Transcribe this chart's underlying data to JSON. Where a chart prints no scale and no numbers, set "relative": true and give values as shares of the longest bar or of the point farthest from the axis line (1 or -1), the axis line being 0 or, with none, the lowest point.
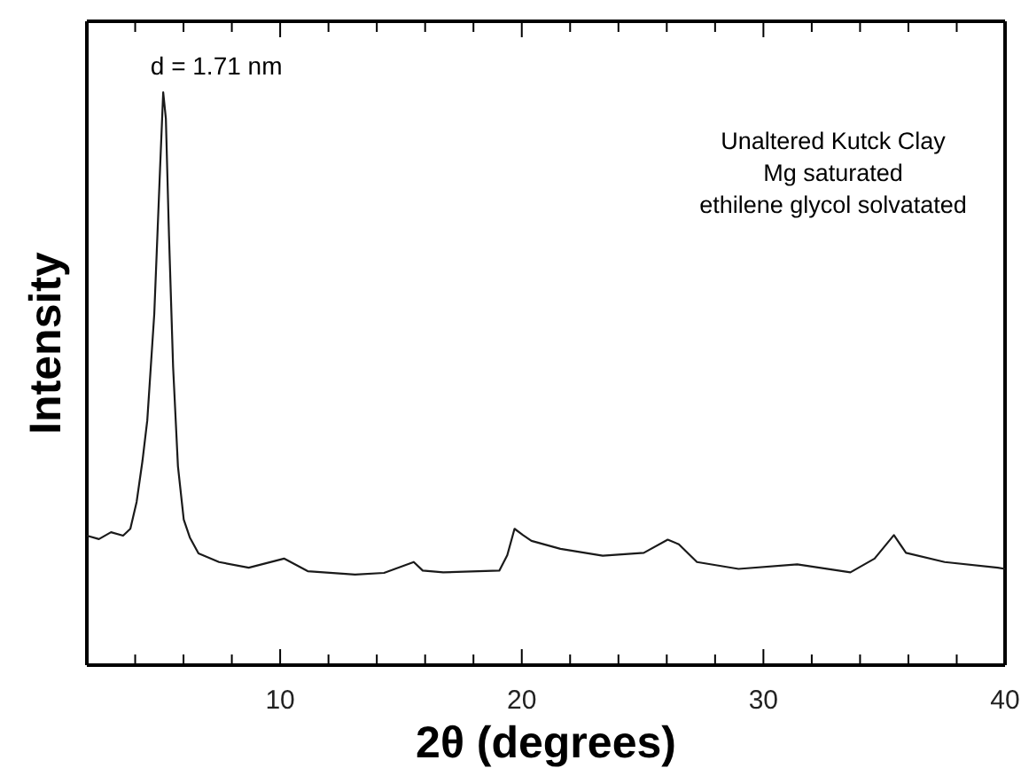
{
  "chart_data": {
    "type": "line",
    "relative": true,
    "xlabel": "2θ (degrees)",
    "ylabel": "Intensity",
    "annotations": [
      {
        "text": "d = 1.71 nm",
        "x": 5.16,
        "y": 1
      },
      "Unaltered Kutck Clay",
      "Mg saturated",
      "ethilene glycol solvatated"
    ],
    "xlim": [
      2,
      40
    ],
    "xticks": [
      {
        "value": 4,
        "label": null
      },
      {
        "value": 6,
        "label": null
      },
      {
        "value": 8,
        "label": null
      },
      10,
      {
        "value": 12,
        "label": null
      },
      {
        "value": 14,
        "label": null
      },
      {
        "value": 16,
        "label": null
      },
      {
        "value": 18,
        "label": null
      },
      20,
      {
        "value": 22,
        "label": null
      },
      {
        "value": 24,
        "label": null
      },
      {
        "value": 26,
        "label": null
      },
      {
        "value": 28,
        "label": null
      },
      30,
      {
        "value": 32,
        "label": null
      },
      {
        "value": 34,
        "label": null
      },
      {
        "value": 36,
        "label": null
      },
      {
        "value": 38,
        "label": null
      },
      40
    ],
    "grid": false,
    "marker": "none",
    "line_style": "solid",
    "series": [
      {
        "color": "#1a1a1a",
        "x": [
          2.0,
          2.5,
          3.0,
          3.5,
          3.8,
          4.06,
          4.3,
          4.5,
          4.79,
          5.03,
          5.16,
          5.27,
          5.4,
          5.57,
          5.77,
          6.01,
          6.26,
          6.62,
          7.47,
          8.7,
          10.16,
          11.14,
          13.1,
          14.3,
          15.53,
          15.9,
          16.75,
          19.07,
          19.4,
          19.7,
          20.05,
          20.4,
          21.6,
          23.35,
          25.05,
          26.04,
          26.5,
          27.25,
          28.97,
          31.4,
          33.6,
          34.6,
          35.4,
          35.9,
          37.5,
          39.7,
          40
        ],
        "values": [
          0.226,
          0.22,
          0.232,
          0.226,
          0.238,
          0.285,
          0.356,
          0.427,
          0.613,
          0.867,
          1,
          0.954,
          0.749,
          0.52,
          0.347,
          0.254,
          0.223,
          0.195,
          0.18,
          0.17,
          0.186,
          0.164,
          0.158,
          0.161,
          0.18,
          0.165,
          0.162,
          0.165,
          0.192,
          0.238,
          0.227,
          0.217,
          0.203,
          0.191,
          0.196,
          0.219,
          0.211,
          0.18,
          0.168,
          0.176,
          0.162,
          0.186,
          0.227,
          0.196,
          0.18,
          0.17,
          0.168
        ]
      }
    ]
  }
}
